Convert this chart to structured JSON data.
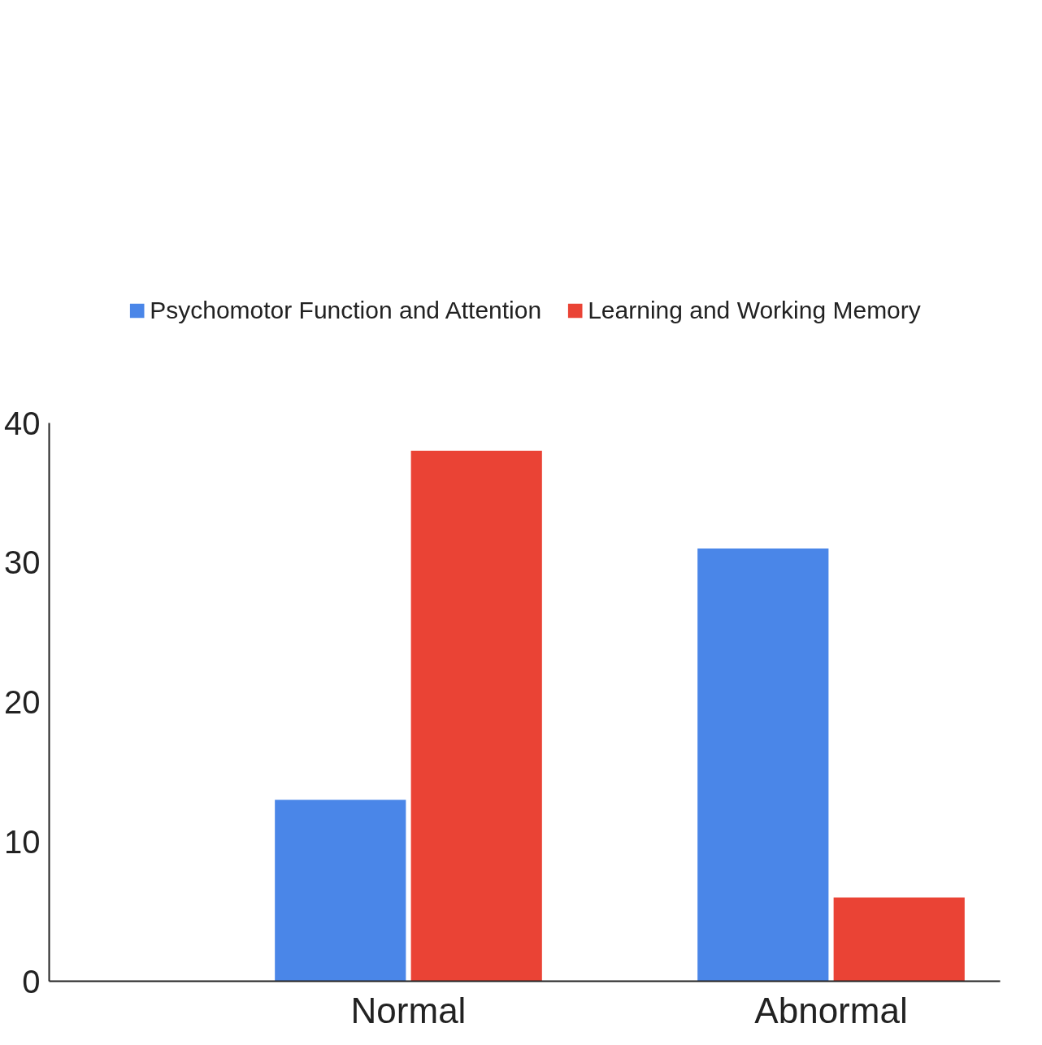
{
  "chart_data": {
    "type": "bar",
    "categories": [
      "Normal",
      "Abnormal"
    ],
    "series": [
      {
        "name": "Psychomotor Function and Attention",
        "color": "#4a86e8",
        "values": [
          13,
          31
        ]
      },
      {
        "name": "Learning and Working Memory",
        "color": "#ea4335",
        "values": [
          38,
          6
        ]
      }
    ],
    "ylim": [
      0,
      40
    ],
    "yticks": [
      0,
      10,
      20,
      30,
      40
    ],
    "grid": false,
    "legend": "top"
  }
}
